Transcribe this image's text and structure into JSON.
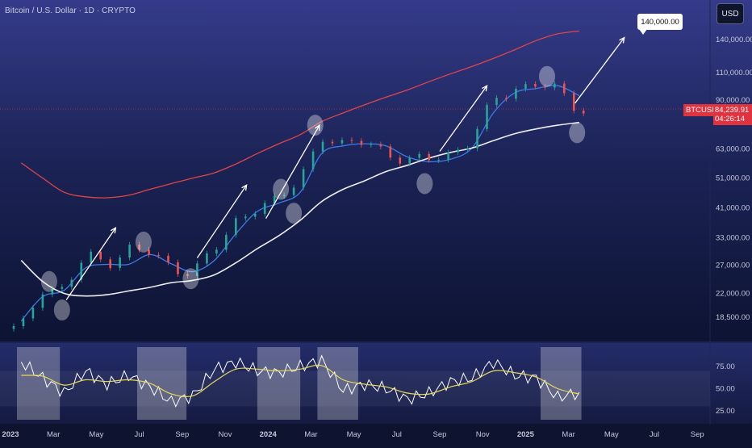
{
  "header": {
    "symbol": "Bitcoin / U.S. Dollar · 1D · CRYPTO",
    "currency": "USD"
  },
  "price_tag": {
    "ticker": "BTCUSD",
    "price": "84,239.91",
    "countdown": "04:26:14"
  },
  "annotation": {
    "target_label": "140,000.00"
  },
  "colors": {
    "background": "#1a2250",
    "ma_red": "#e0444a",
    "ma_blue": "#3b7be8",
    "ma_white": "#eeeeee",
    "up": "#26a69a",
    "down": "#ef5350",
    "rsi_white": "#ffffff",
    "rsi_yellow": "#e8d95a"
  },
  "chart_data": [
    {
      "type": "line",
      "title": "Bitcoin / U.S. Dollar · 1D · CRYPTO",
      "scale": "log",
      "y_ticks": [
        "140,000.00",
        "110,000.00",
        "90,000.00",
        "63,000.00",
        "51,000.00",
        "41,000.00",
        "33,000.00",
        "27,000.00",
        "22,000.00",
        "18,500.00"
      ],
      "x_ticks": [
        "2023",
        "Mar",
        "May",
        "Jul",
        "Sep",
        "Nov",
        "2024",
        "Mar",
        "May",
        "Jul",
        "Sep",
        "Nov",
        "2025",
        "Mar",
        "May",
        "Jul",
        "Sep"
      ],
      "grid": false,
      "x": [
        "2023-01",
        "2023-02",
        "2023-03",
        "2023-04",
        "2023-05",
        "2023-06",
        "2023-07",
        "2023-08",
        "2023-09",
        "2023-10",
        "2023-11",
        "2023-12",
        "2024-01",
        "2024-02",
        "2024-03",
        "2024-04",
        "2024-05",
        "2024-06",
        "2024-07",
        "2024-08",
        "2024-09",
        "2024-10",
        "2024-11",
        "2024-12",
        "2025-01",
        "2025-02",
        "2025-03"
      ],
      "series": [
        {
          "name": "",
          "role": "price",
          "values": [
            17000,
            23000,
            22500,
            29000,
            27500,
            30500,
            29500,
            26500,
            26000,
            30000,
            37000,
            42000,
            43000,
            51000,
            70000,
            64000,
            67000,
            62000,
            57000,
            59000,
            61000,
            67000,
            90000,
            98000,
            102000,
            96000,
            84000
          ]
        },
        {
          "name": "",
          "role": "ma-blue",
          "values": [
            18000,
            21500,
            22500,
            26500,
            27200,
            27200,
            29200,
            27300,
            25800,
            28000,
            34000,
            40000,
            42500,
            46000,
            61000,
            64500,
            65500,
            64500,
            59500,
            57500,
            58500,
            63500,
            82000,
            95000,
            98000,
            100000,
            93000
          ]
        },
        {
          "name": "",
          "role": "ma-white",
          "values": [
            28000,
            24000,
            22000,
            21600,
            21800,
            22400,
            23000,
            23800,
            24200,
            25200,
            27500,
            30500,
            33500,
            37500,
            43000,
            47000,
            50000,
            53500,
            56000,
            59000,
            61500,
            63500,
            67000,
            70500,
            73000,
            75000,
            76500
          ]
        },
        {
          "name": "",
          "role": "ma-red",
          "values": [
            57000,
            51000,
            46000,
            44500,
            44200,
            45000,
            47000,
            49000,
            51000,
            53000,
            56500,
            61000,
            65500,
            70000,
            77000,
            82000,
            87000,
            92000,
            97000,
            103000,
            109000,
            115000,
            122000,
            130000,
            139000,
            146000,
            149000
          ]
        }
      ]
    },
    {
      "type": "line",
      "title": "",
      "y_ticks": [
        "75.00",
        "50.00",
        "25.00"
      ],
      "ylim": [
        15,
        95
      ],
      "bands": [
        30,
        70
      ],
      "series": [
        {
          "name": "",
          "role": "rsi",
          "values": [
            80,
            62,
            45,
            70,
            55,
            65,
            52,
            35,
            42,
            72,
            80,
            70,
            68,
            75,
            82,
            48,
            55,
            50,
            38,
            45,
            58,
            62,
            80,
            65,
            62,
            40,
            46
          ]
        },
        {
          "name": "",
          "role": "rsi-ma",
          "values": [
            65,
            64,
            54,
            60,
            58,
            60,
            56,
            44,
            42,
            58,
            72,
            72,
            70,
            72,
            76,
            60,
            55,
            52,
            45,
            44,
            52,
            58,
            70,
            68,
            63,
            50,
            44
          ]
        }
      ]
    }
  ]
}
